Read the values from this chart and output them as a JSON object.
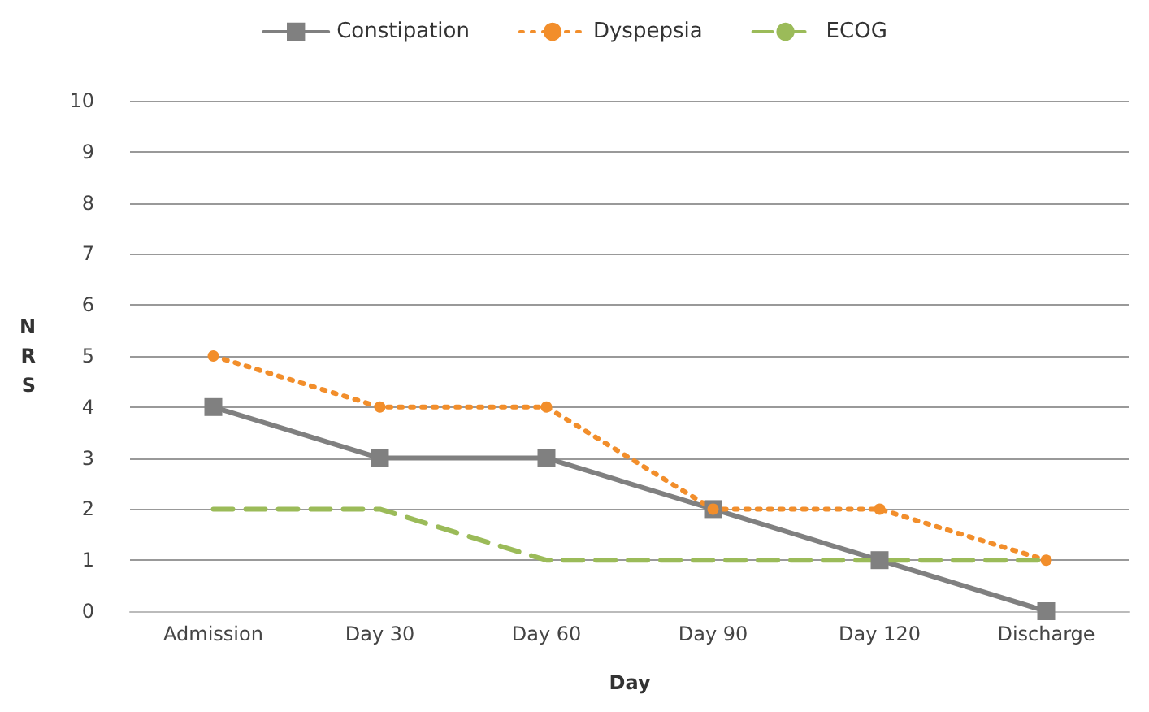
{
  "chart_data": {
    "type": "line",
    "xlabel": "Day",
    "ylabel": "NRS",
    "categories": [
      "Admission",
      "Day 30",
      "Day 60",
      "Day 90",
      "Day 120",
      "Discharge"
    ],
    "series": [
      {
        "name": "Constipation",
        "color": "#808080",
        "marker": "square",
        "line_style": "solid",
        "values": [
          4,
          3,
          3,
          2,
          1,
          0
        ]
      },
      {
        "name": "Dyspepsia",
        "color": "#f28e2b",
        "marker": "circle",
        "line_style": "dotted",
        "values": [
          5,
          4,
          4,
          2,
          2,
          1
        ]
      },
      {
        "name": "ECOG",
        "color": "#9bbb59",
        "marker": "none",
        "line_style": "dashed",
        "values": [
          2,
          2,
          1,
          1,
          1,
          1
        ]
      }
    ],
    "ylim": [
      0,
      10
    ],
    "yticks": [
      0,
      1,
      2,
      3,
      4,
      5,
      6,
      7,
      8,
      9,
      10
    ],
    "grid": "y",
    "legend": "top"
  }
}
